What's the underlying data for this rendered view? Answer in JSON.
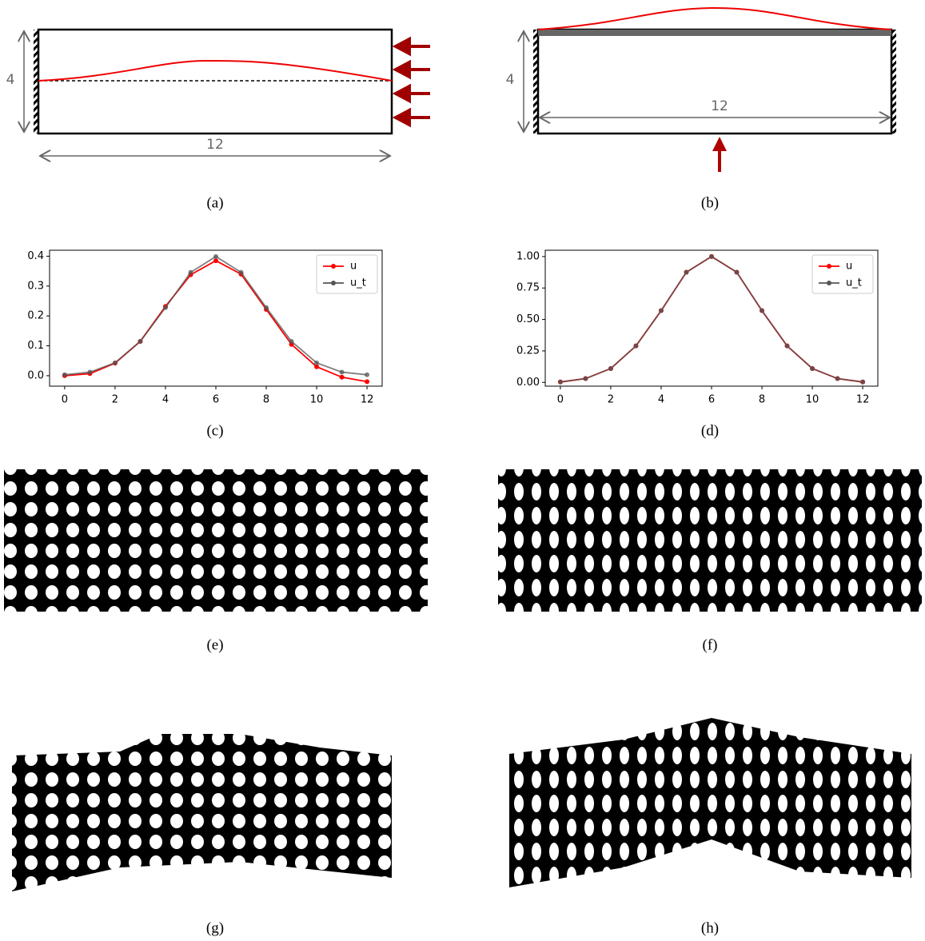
{
  "panels": {
    "labels": [
      "(a)",
      "(b)",
      "(c)",
      "(d)",
      "(e)",
      "(f)",
      "(g)",
      "(h)"
    ],
    "a": {
      "height": "4",
      "width": "12"
    },
    "b": {
      "height": "4",
      "width": "12"
    }
  },
  "chart_data": [
    {
      "type": "line",
      "x": [
        0,
        1,
        2,
        3,
        4,
        5,
        6,
        7,
        8,
        9,
        10,
        11,
        12
      ],
      "series": [
        {
          "name": "u",
          "color": "#ff0000",
          "values": [
            0.0,
            0.007,
            0.042,
            0.115,
            0.232,
            0.338,
            0.385,
            0.34,
            0.222,
            0.105,
            0.03,
            -0.005,
            -0.02
          ]
        },
        {
          "name": "u_t",
          "color": "#555555",
          "values": [
            0.003,
            0.012,
            0.043,
            0.115,
            0.228,
            0.346,
            0.399,
            0.346,
            0.228,
            0.115,
            0.043,
            0.012,
            0.003
          ]
        }
      ],
      "xlim": [
        -0.6,
        12.6
      ],
      "xticks": [
        0,
        2,
        4,
        6,
        8,
        10,
        12
      ],
      "ylim": [
        -0.035,
        0.42
      ],
      "yticks": [
        {
          "value": 0,
          "label": "0.0"
        },
        0.1,
        0.2,
        0.3,
        0.4
      ],
      "legend": "upper right"
    },
    {
      "type": "line",
      "x": [
        0,
        1,
        2,
        3,
        4,
        5,
        6,
        7,
        8,
        9,
        10,
        11,
        12
      ],
      "series": [
        {
          "name": "u",
          "color": "#ff0000",
          "values": [
            0.003,
            0.03,
            0.11,
            0.29,
            0.57,
            0.875,
            1.0,
            0.875,
            0.57,
            0.29,
            0.11,
            0.03,
            0.003
          ]
        },
        {
          "name": "u_t",
          "color": "#555555",
          "values": [
            0.003,
            0.03,
            0.11,
            0.29,
            0.57,
            0.875,
            1.0,
            0.875,
            0.57,
            0.29,
            0.11,
            0.03,
            0.003
          ]
        }
      ],
      "xlim": [
        -0.6,
        12.6
      ],
      "xticks": [
        0,
        2,
        4,
        6,
        8,
        10,
        12
      ],
      "ylim": [
        -0.03,
        1.05
      ],
      "yticks": [
        {
          "value": 0,
          "label": "0.00"
        },
        0.25,
        {
          "value": 0.5,
          "label": "0.50"
        },
        0.75,
        {
          "value": 1,
          "label": "1.00"
        }
      ],
      "legend": "upper right"
    }
  ]
}
